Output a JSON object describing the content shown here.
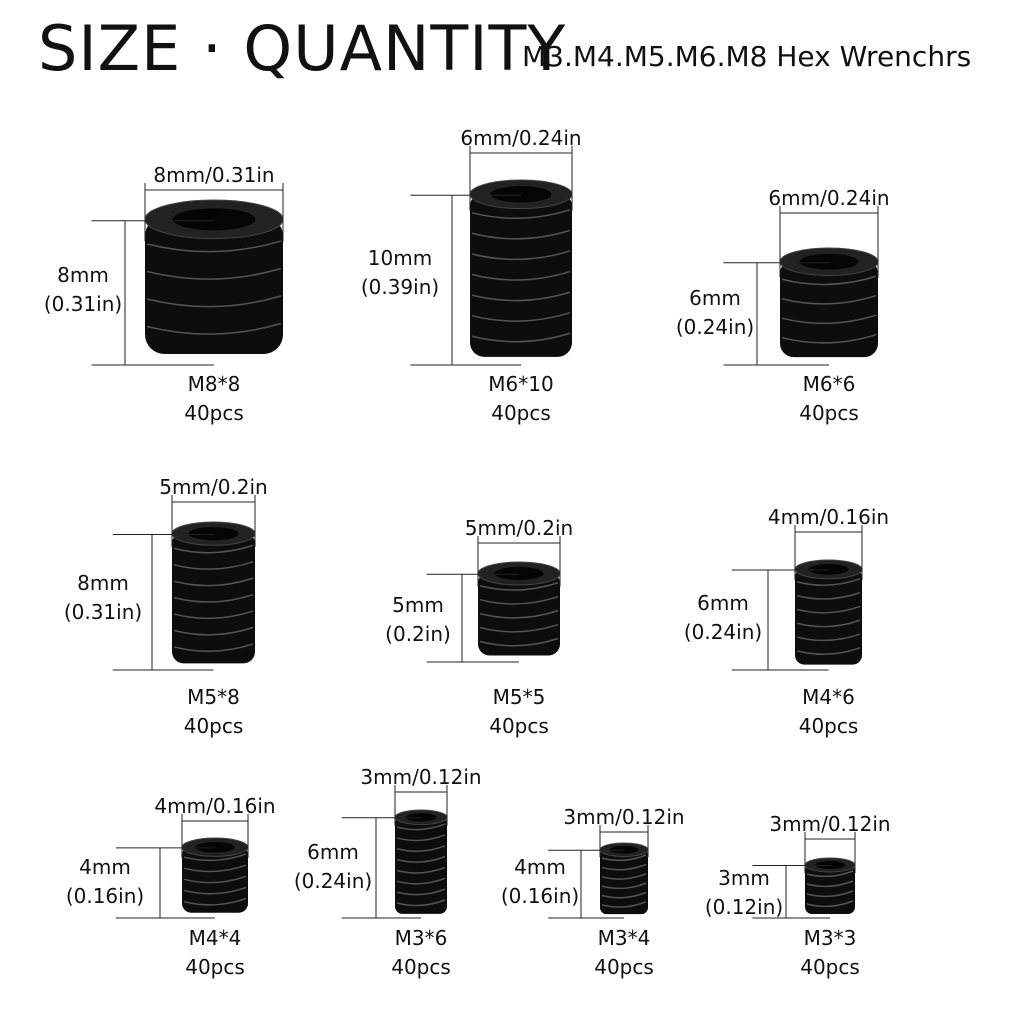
{
  "header": {
    "title": "SIZE · QUANTITY",
    "subtitle": "M3.M4.M5.M6.M8 Hex Wrenchrs"
  },
  "items": [
    {
      "name": "M8*8",
      "qty": "40pcs",
      "width": "8mm/0.31in",
      "height_mm": "8mm",
      "height_in": "(0.31in)"
    },
    {
      "name": "M6*10",
      "qty": "40pcs",
      "width": "6mm/0.24in",
      "height_mm": "10mm",
      "height_in": "(0.39in)"
    },
    {
      "name": "M6*6",
      "qty": "40pcs",
      "width": "6mm/0.24in",
      "height_mm": "6mm",
      "height_in": "(0.24in)"
    },
    {
      "name": "M5*8",
      "qty": "40pcs",
      "width": "5mm/0.2in",
      "height_mm": "8mm",
      "height_in": "(0.31in)"
    },
    {
      "name": "M5*5",
      "qty": "40pcs",
      "width": "5mm/0.2in",
      "height_mm": "5mm",
      "height_in": "(0.2in)"
    },
    {
      "name": "M4*6",
      "qty": "40pcs",
      "width": "4mm/0.16in",
      "height_mm": "6mm",
      "height_in": "(0.24in)"
    },
    {
      "name": "M4*4",
      "qty": "40pcs",
      "width": "4mm/0.16in",
      "height_mm": "4mm",
      "height_in": "(0.16in)"
    },
    {
      "name": "M3*6",
      "qty": "40pcs",
      "width": "3mm/0.12in",
      "height_mm": "6mm",
      "height_in": "(0.24in)"
    },
    {
      "name": "M3*4",
      "qty": "40pcs",
      "width": "3mm/0.12in",
      "height_mm": "4mm",
      "height_in": "(0.16in)"
    },
    {
      "name": "M3*3",
      "qty": "40pcs",
      "width": "3mm/0.12in",
      "height_mm": "3mm",
      "height_in": "(0.12in)"
    }
  ],
  "colors": {
    "screw": "#0d0d0d",
    "line": "#222222"
  }
}
